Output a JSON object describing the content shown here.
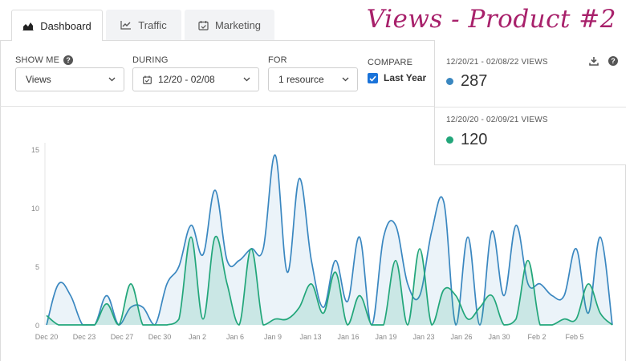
{
  "heading": "Views - Product #2",
  "tabs": [
    {
      "label": "Dashboard",
      "icon": "area-chart-icon"
    },
    {
      "label": "Traffic",
      "icon": "line-chart-icon"
    },
    {
      "label": "Marketing",
      "icon": "calendar-check-icon"
    }
  ],
  "controls": {
    "show_me": {
      "label": "SHOW ME",
      "value": "Views"
    },
    "during": {
      "label": "DURING",
      "value": "12/20 - 02/08"
    },
    "for": {
      "label": "FOR",
      "value": "1 resource"
    },
    "compare": {
      "label": "COMPARE",
      "checkbox_label": "Last Year",
      "checked": true
    }
  },
  "stats": {
    "current": {
      "range": "12/20/21 - 02/08/22 VIEWS",
      "value": "287",
      "color": "#3a87c0"
    },
    "previous": {
      "range": "12/20/20 - 02/09/21 VIEWS",
      "value": "120",
      "color": "#22a67a"
    }
  },
  "chart_data": {
    "type": "area",
    "x_labels": [
      "Dec 20",
      "Dec 23",
      "Dec 27",
      "Dec 30",
      "Jan 2",
      "Jan 6",
      "Jan 9",
      "Jan 13",
      "Jan 16",
      "Jan 19",
      "Jan 23",
      "Jan 26",
      "Jan 30",
      "Feb 2",
      "Feb 5"
    ],
    "yticks": [
      0,
      5,
      10,
      15
    ],
    "ylim": [
      0,
      15
    ],
    "series": [
      {
        "color": "#3a87c0",
        "values": [
          0,
          3.5,
          2.5,
          0,
          0,
          2.5,
          0,
          1.5,
          1.5,
          0,
          3.5,
          5,
          8.5,
          6,
          11.5,
          5.5,
          5.5,
          6.5,
          6.5,
          14.5,
          4.5,
          12.5,
          5.5,
          1.5,
          5.5,
          2,
          7.5,
          0,
          7.5,
          8.5,
          3.5,
          2.5,
          8,
          10.5,
          0,
          7.5,
          0,
          8,
          2.5,
          8.5,
          3.5,
          3.5,
          2.5,
          2.5,
          6.5,
          1,
          7.5,
          0
        ]
      },
      {
        "color": "#22a67a",
        "values": [
          0.8,
          0,
          0,
          0,
          0,
          1.8,
          0,
          3.5,
          0,
          0,
          0,
          0.5,
          7.5,
          0.5,
          7.5,
          3.5,
          0,
          6.5,
          0,
          0.5,
          0.5,
          1.5,
          3.5,
          1,
          4.5,
          0,
          2.5,
          0,
          0,
          5.5,
          0,
          6.5,
          0,
          3,
          2.5,
          0.5,
          1.5,
          2.5,
          0,
          0.5,
          5.5,
          0,
          0,
          0.5,
          0.5,
          3.5,
          1,
          0
        ]
      }
    ]
  }
}
